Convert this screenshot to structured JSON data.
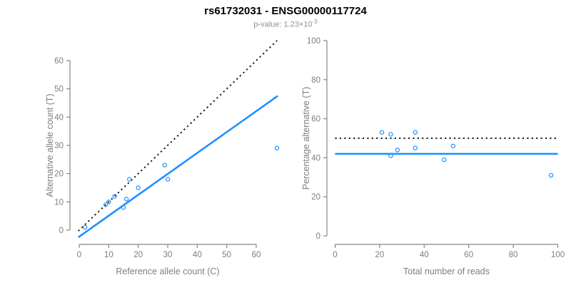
{
  "header": {
    "title": "rs61732031 - ENSG00000117724",
    "subtitle_prefix": "p-value: 1.23×10",
    "subtitle_exponent": "-3"
  },
  "colors": {
    "accent_blue": "#1E90FF",
    "axis_gray": "#858585",
    "tick_label_gray": "#7e7e7e",
    "dotted_black": "#1a1a1a",
    "subtitle_gray": "#8f8f8f",
    "background": "#ffffff"
  },
  "chart_data": [
    {
      "type": "scatter",
      "panel": "allele-counts",
      "xlabel": "Reference allele count (C)",
      "ylabel": "Alternative allele count (T)",
      "xlim": [
        0,
        67
      ],
      "ylim": [
        0,
        67
      ],
      "xticks": [
        0,
        10,
        20,
        30,
        40,
        50,
        60
      ],
      "yticks": [
        0,
        10,
        20,
        30,
        40,
        50,
        60
      ],
      "grid": false,
      "legend": "none",
      "points": [
        [
          2,
          1
        ],
        [
          9,
          9
        ],
        [
          10,
          10
        ],
        [
          12,
          12
        ],
        [
          15,
          8
        ],
        [
          16,
          11
        ],
        [
          17,
          18
        ],
        [
          20,
          15
        ],
        [
          29,
          23
        ],
        [
          30,
          18
        ],
        [
          67,
          29
        ]
      ],
      "lines": [
        {
          "name": "identity-line",
          "style": "dotted",
          "color": "black",
          "slope": 1,
          "intercept": 0
        },
        {
          "name": "regression-line",
          "style": "solid",
          "color": "blue",
          "slope": 0.74,
          "intercept": -2.3
        }
      ]
    },
    {
      "type": "scatter",
      "panel": "percentage-vs-reads",
      "xlabel": "Total number of reads",
      "ylabel": "Percentage alternative (T)",
      "xlim": [
        0,
        100
      ],
      "ylim": [
        0,
        100
      ],
      "xticks": [
        0,
        20,
        40,
        60,
        80,
        100
      ],
      "yticks": [
        0,
        20,
        40,
        60,
        80,
        100
      ],
      "grid": false,
      "legend": "none",
      "points": [
        [
          21,
          53
        ],
        [
          25,
          52
        ],
        [
          25,
          41
        ],
        [
          28,
          44
        ],
        [
          36,
          53
        ],
        [
          36,
          45
        ],
        [
          49,
          39
        ],
        [
          53,
          46
        ],
        [
          97,
          31
        ]
      ],
      "lines": [
        {
          "name": "expected-50-percent-line",
          "style": "dotted",
          "color": "black",
          "hline": 50
        },
        {
          "name": "mean-percentage-line",
          "style": "solid",
          "color": "blue",
          "hline": 42
        }
      ]
    }
  ]
}
